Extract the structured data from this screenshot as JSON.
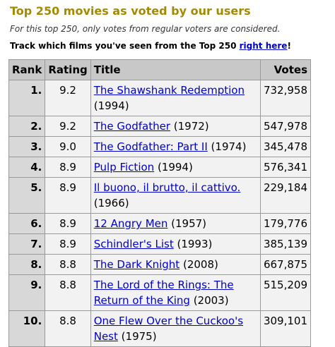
{
  "header": {
    "title": "Top 250 movies as voted by our users",
    "note": "For this top 250, only votes from regular voters are considered.",
    "track_text": "Track which films you've seen from the Top 250 ",
    "track_link": "right here",
    "track_end": "!"
  },
  "table": {
    "columns": [
      "Rank",
      "Rating",
      "Title",
      "Votes"
    ],
    "rows": [
      [
        "1.",
        "9.2",
        "The Shawshank Redemption",
        "(1994)",
        "732,958"
      ],
      [
        "2.",
        "9.2",
        "The Godfather",
        "(1972)",
        "547,978"
      ],
      [
        "3.",
        "9.0",
        "The Godfather: Part II",
        "(1974)",
        "345,478"
      ],
      [
        "4.",
        "8.9",
        "Pulp Fiction",
        "(1994)",
        "576,341"
      ],
      [
        "5.",
        "8.9",
        "Il buono, il brutto, il cattivo.",
        "(1966)",
        "229,184"
      ],
      [
        "6.",
        "8.9",
        "12 Angry Men",
        "(1957)",
        "179,776"
      ],
      [
        "7.",
        "8.9",
        "Schindler's List",
        "(1993)",
        "385,139"
      ],
      [
        "8.",
        "8.8",
        "The Dark Knight",
        "(2008)",
        "667,875"
      ],
      [
        "9.",
        "8.8",
        "The Lord of the Rings: The Return of the King",
        "(2003)",
        "515,209"
      ],
      [
        "10.",
        "8.8",
        "One Flew Over the Cuckoo's Nest",
        "(1975)",
        "309,101"
      ]
    ]
  }
}
